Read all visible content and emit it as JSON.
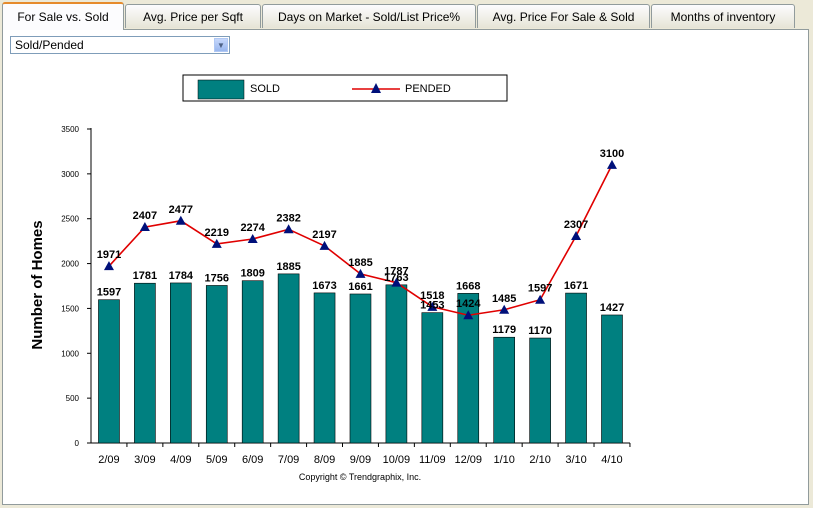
{
  "tabs": [
    {
      "label": "For Sale vs. Sold",
      "active": true
    },
    {
      "label": "Avg. Price per Sqft",
      "active": false
    },
    {
      "label": "Days on Market - Sold/List Price%",
      "active": false
    },
    {
      "label": "Avg. Price For Sale & Sold",
      "active": false
    },
    {
      "label": "Months of inventory",
      "active": false
    }
  ],
  "dropdown": {
    "value": "Sold/Pended"
  },
  "copyright": "Copyright © Trendgraphix, Inc.",
  "colors": {
    "bar": "#008080",
    "line": "#e00000",
    "marker": "#00107a",
    "tab_accent": "#e68b2c"
  },
  "chart_data": {
    "type": "bar",
    "title": "",
    "xlabel": "",
    "ylabel": "Number of Homes",
    "ylim": [
      0,
      3500
    ],
    "yticks": [
      0,
      500,
      1000,
      1500,
      2000,
      2500,
      3000,
      3500
    ],
    "categories": [
      "2/09",
      "3/09",
      "4/09",
      "5/09",
      "6/09",
      "7/09",
      "8/09",
      "9/09",
      "10/09",
      "11/09",
      "12/09",
      "1/10",
      "2/10",
      "3/10",
      "4/10"
    ],
    "series": [
      {
        "name": "SOLD",
        "kind": "bar",
        "values": [
          1597,
          1781,
          1784,
          1756,
          1809,
          1885,
          1673,
          1661,
          1763,
          1453,
          1668,
          1179,
          1170,
          1671,
          1427
        ]
      },
      {
        "name": "PENDED",
        "kind": "line",
        "values": [
          1971,
          2407,
          2477,
          2219,
          2274,
          2382,
          2197,
          1885,
          1787,
          1518,
          1424,
          1485,
          1597,
          2307,
          3100
        ]
      }
    ],
    "legend_position": "top"
  }
}
